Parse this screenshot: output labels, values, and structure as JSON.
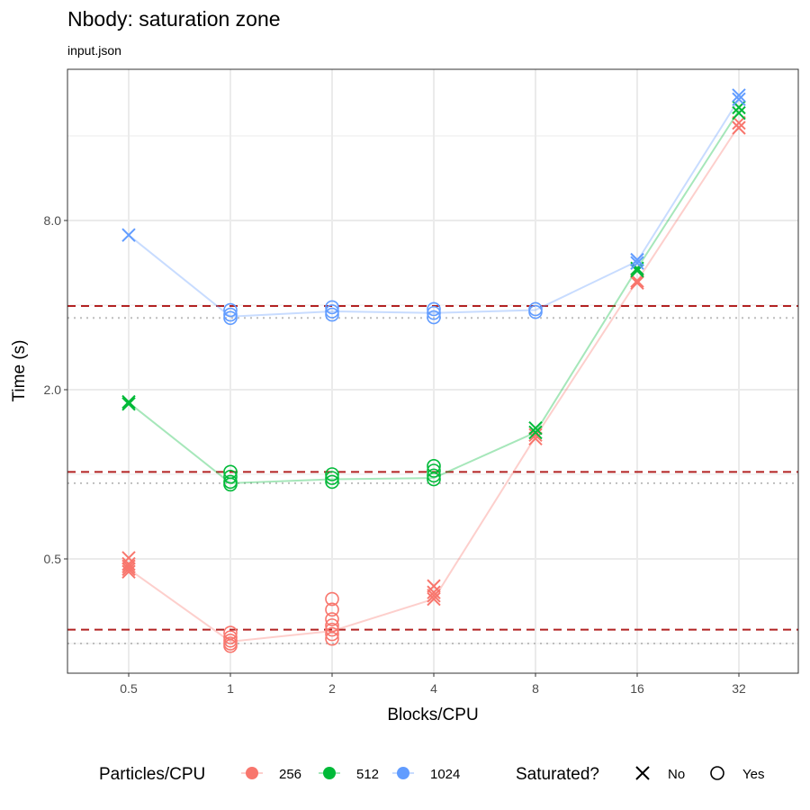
{
  "chart_data": {
    "type": "scatter",
    "title": "Nbody: saturation zone",
    "subtitle": "input.json",
    "xlabel": "Blocks/CPU",
    "ylabel": "Time (s)",
    "x_scale": "categorical",
    "y_scale": "log2",
    "categories": [
      "0.5",
      "1",
      "2",
      "4",
      "8",
      "16",
      "32"
    ],
    "y_ticks": [
      0.5,
      2.0,
      8.0
    ],
    "y_tick_labels": [
      "0.5",
      "2.0",
      "8.0"
    ],
    "ylim": [
      0.196,
      27.6
    ],
    "grid": true,
    "legend_position": "bottom",
    "color_legend_title": "Particles/CPU",
    "shape_legend_title": "Saturated?",
    "shape_legend": [
      {
        "label": "No",
        "shape": "x"
      },
      {
        "label": "Yes",
        "shape": "circle"
      }
    ],
    "series": [
      {
        "name": "256",
        "color": "#F8766D",
        "line": [
          0.46,
          0.254,
          0.277,
          0.36,
          1.36,
          4.88,
          17.4
        ],
        "points": [
          {
            "x": "0.5",
            "saturated": "No",
            "y": [
              0.504,
              0.48,
              0.47,
              0.46,
              0.45
            ]
          },
          {
            "x": "1",
            "saturated": "Yes",
            "y": [
              0.273,
              0.263,
              0.256,
              0.25,
              0.245
            ]
          },
          {
            "x": "2",
            "saturated": "Yes",
            "y": [
              0.36,
              0.33,
              0.305,
              0.29,
              0.28,
              0.27,
              0.26
            ]
          },
          {
            "x": "4",
            "saturated": "No",
            "y": [
              0.4,
              0.38,
              0.37,
              0.36
            ]
          },
          {
            "x": "8",
            "saturated": "No",
            "y": [
              1.38,
              1.34
            ]
          },
          {
            "x": "16",
            "saturated": "No",
            "y": [
              4.88,
              4.8
            ]
          },
          {
            "x": "32",
            "saturated": "No",
            "y": [
              17.8,
              17.1
            ]
          }
        ],
        "threshold_dashed": 0.28,
        "threshold_dotted": 0.25
      },
      {
        "name": "512",
        "color": "#00BA38",
        "line": [
          1.8,
          0.93,
          0.96,
          0.97,
          1.41,
          5.4,
          19.7
        ],
        "points": [
          {
            "x": "0.5",
            "saturated": "No",
            "y": [
              1.81,
              1.78
            ]
          },
          {
            "x": "1",
            "saturated": "Yes",
            "y": [
              1.02,
              0.98,
              0.94,
              0.92
            ]
          },
          {
            "x": "2",
            "saturated": "Yes",
            "y": [
              1.0,
              0.97,
              0.94
            ]
          },
          {
            "x": "4",
            "saturated": "Yes",
            "y": [
              1.07,
              1.03,
              0.99,
              0.96
            ]
          },
          {
            "x": "8",
            "saturated": "No",
            "y": [
              1.46,
              1.41
            ]
          },
          {
            "x": "16",
            "saturated": "No",
            "y": [
              5.4,
              5.3
            ]
          },
          {
            "x": "32",
            "saturated": "No",
            "y": [
              20.2,
              19.3
            ]
          }
        ],
        "threshold_dashed": 1.02,
        "threshold_dotted": 0.93
      },
      {
        "name": "1024",
        "color": "#619CFF",
        "line": [
          7.1,
          3.64,
          3.8,
          3.75,
          3.84,
          5.73,
          21.6
        ],
        "points": [
          {
            "x": "0.5",
            "saturated": "No",
            "y": [
              7.1
            ]
          },
          {
            "x": "1",
            "saturated": "Yes",
            "y": [
              3.84,
              3.7,
              3.6
            ]
          },
          {
            "x": "2",
            "saturated": "Yes",
            "y": [
              3.93,
              3.8,
              3.7
            ]
          },
          {
            "x": "4",
            "saturated": "Yes",
            "y": [
              3.87,
              3.75,
              3.62
            ]
          },
          {
            "x": "8",
            "saturated": "Yes",
            "y": [
              3.87,
              3.78
            ]
          },
          {
            "x": "16",
            "saturated": "No",
            "y": [
              5.8,
              5.65
            ]
          },
          {
            "x": "32",
            "saturated": "No",
            "y": [
              22.3,
              21.6
            ]
          }
        ],
        "threshold_dashed": 3.97,
        "threshold_dotted": 3.6
      }
    ],
    "threshold_dashed_color": "#B22222",
    "threshold_dotted_color": "#BEBEBE"
  }
}
